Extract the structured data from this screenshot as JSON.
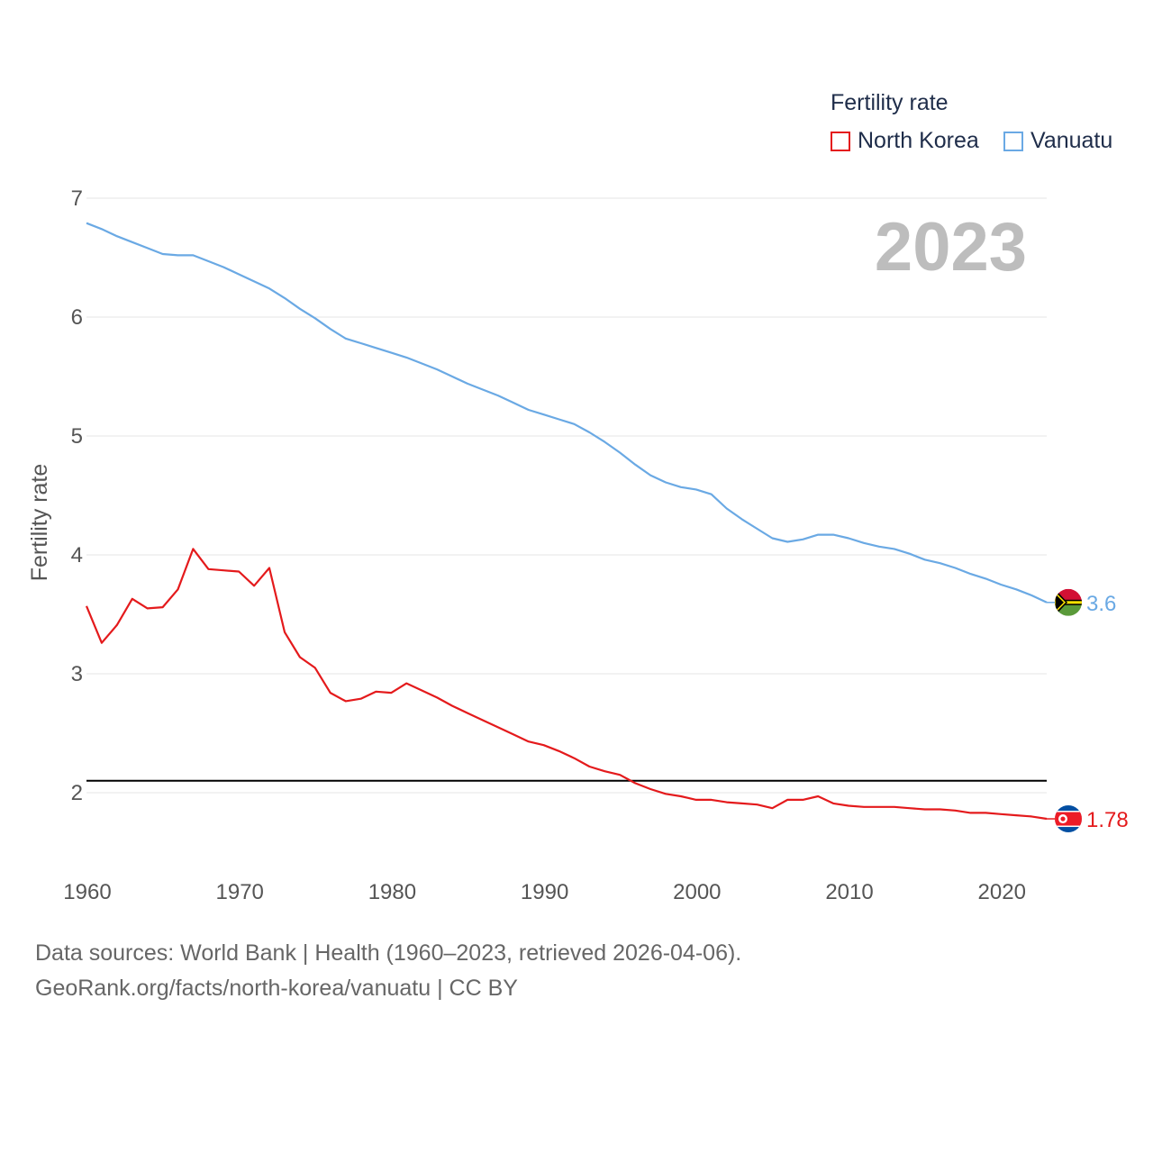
{
  "legend": {
    "title": "Fertility rate",
    "items": [
      {
        "name": "North Korea",
        "color": "#e41a1c"
      },
      {
        "name": "Vanuatu",
        "color": "#6aa9e4"
      }
    ]
  },
  "year_label": "2023",
  "source": {
    "line1": "Data sources: World Bank | Health (1960–2023, retrieved 2026-04-06).",
    "line2": "GeoRank.org/facts/north-korea/vanuatu | CC BY"
  },
  "chart_data": {
    "type": "line",
    "title": "Fertility rate",
    "xlabel": "",
    "ylabel": "Fertility rate",
    "xlim": [
      1960,
      2023
    ],
    "ylim": [
      1.5,
      7.0
    ],
    "xticks": [
      1960,
      1970,
      1980,
      1990,
      2000,
      2010,
      2020
    ],
    "yticks": [
      2,
      3,
      4,
      5,
      6,
      7
    ],
    "grid": true,
    "reference_line": {
      "y": 2.1,
      "color": "#000000"
    },
    "x": [
      1960,
      1961,
      1962,
      1963,
      1964,
      1965,
      1966,
      1967,
      1968,
      1969,
      1970,
      1971,
      1972,
      1973,
      1974,
      1975,
      1976,
      1977,
      1978,
      1979,
      1980,
      1981,
      1982,
      1983,
      1984,
      1985,
      1986,
      1987,
      1988,
      1989,
      1990,
      1991,
      1992,
      1993,
      1994,
      1995,
      1996,
      1997,
      1998,
      1999,
      2000,
      2001,
      2002,
      2003,
      2004,
      2005,
      2006,
      2007,
      2008,
      2009,
      2010,
      2011,
      2012,
      2013,
      2014,
      2015,
      2016,
      2017,
      2018,
      2019,
      2020,
      2021,
      2022,
      2023
    ],
    "series": [
      {
        "name": "North Korea",
        "color": "#e41a1c",
        "end_label": "1.78",
        "values": [
          3.57,
          3.26,
          3.41,
          3.63,
          3.55,
          3.56,
          3.71,
          4.05,
          3.88,
          3.87,
          3.86,
          3.74,
          3.89,
          3.35,
          3.14,
          3.05,
          2.84,
          2.77,
          2.79,
          2.85,
          2.84,
          2.92,
          2.86,
          2.8,
          2.73,
          2.67,
          2.61,
          2.55,
          2.49,
          2.43,
          2.4,
          2.35,
          2.29,
          2.22,
          2.18,
          2.15,
          2.08,
          2.03,
          1.99,
          1.97,
          1.94,
          1.94,
          1.92,
          1.91,
          1.9,
          1.87,
          1.94,
          1.94,
          1.97,
          1.91,
          1.89,
          1.88,
          1.88,
          1.88,
          1.87,
          1.86,
          1.86,
          1.85,
          1.83,
          1.83,
          1.82,
          1.81,
          1.8,
          1.78
        ]
      },
      {
        "name": "Vanuatu",
        "color": "#6aa9e4",
        "end_label": "3.6",
        "values": [
          6.79,
          6.74,
          6.68,
          6.63,
          6.58,
          6.53,
          6.52,
          6.52,
          6.47,
          6.42,
          6.36,
          6.3,
          6.24,
          6.16,
          6.07,
          5.99,
          5.9,
          5.82,
          5.78,
          5.74,
          5.7,
          5.66,
          5.61,
          5.56,
          5.5,
          5.44,
          5.39,
          5.34,
          5.28,
          5.22,
          5.18,
          5.14,
          5.1,
          5.03,
          4.95,
          4.86,
          4.76,
          4.67,
          4.61,
          4.57,
          4.55,
          4.51,
          4.39,
          4.3,
          4.22,
          4.14,
          4.11,
          4.13,
          4.17,
          4.17,
          4.14,
          4.1,
          4.07,
          4.05,
          4.01,
          3.96,
          3.93,
          3.89,
          3.84,
          3.8,
          3.75,
          3.71,
          3.66,
          3.6
        ]
      }
    ]
  }
}
